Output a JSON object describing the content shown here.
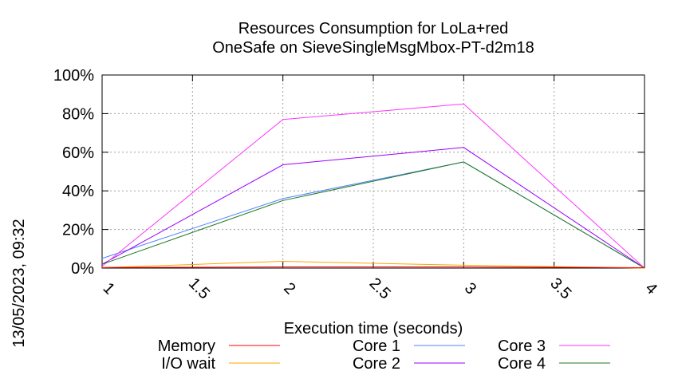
{
  "chart_data": {
    "type": "line",
    "title_line1": "Resources Consumption for LoLa+red",
    "title_line2": "OneSafe on SieveSingleMsgMbox-PT-d2m18",
    "xlabel": "Execution time (seconds)",
    "ylabel": "",
    "timestamp": "13/05/2023, 09:32",
    "xlim": [
      1,
      4
    ],
    "ylim": [
      0,
      100
    ],
    "x_ticks": [
      "1",
      "1.5",
      "2",
      "2.5",
      "3",
      "3.5",
      "4"
    ],
    "x_tick_values": [
      1,
      1.5,
      2,
      2.5,
      3,
      3.5,
      4
    ],
    "y_ticks": [
      "0%",
      "20%",
      "40%",
      "60%",
      "80%",
      "100%"
    ],
    "y_tick_values": [
      0,
      20,
      40,
      60,
      80,
      100
    ],
    "grid": true,
    "legend_position": "bottom",
    "series": [
      {
        "name": "Memory",
        "color": "#ff0000",
        "x": [
          1,
          2,
          3,
          4
        ],
        "y": [
          0.3,
          0.6,
          0.6,
          0.2
        ]
      },
      {
        "name": "I/O wait",
        "color": "#ffa500",
        "x": [
          1,
          2,
          3,
          4
        ],
        "y": [
          0.2,
          3.5,
          1.5,
          0
        ]
      },
      {
        "name": "Core 1",
        "color": "#4f81ff",
        "x": [
          1,
          2,
          3,
          4
        ],
        "y": [
          5,
          36,
          55,
          0
        ]
      },
      {
        "name": "Core 2",
        "color": "#9a00ff",
        "x": [
          1,
          2,
          3,
          4
        ],
        "y": [
          2,
          53.5,
          62.5,
          0
        ]
      },
      {
        "name": "Core 3",
        "color": "#ff33ff",
        "x": [
          1,
          2,
          3,
          4
        ],
        "y": [
          1,
          77,
          85,
          0
        ]
      },
      {
        "name": "Core 4",
        "color": "#1f7a1f",
        "x": [
          1,
          2,
          3,
          4
        ],
        "y": [
          2,
          35,
          55,
          0
        ]
      }
    ]
  }
}
